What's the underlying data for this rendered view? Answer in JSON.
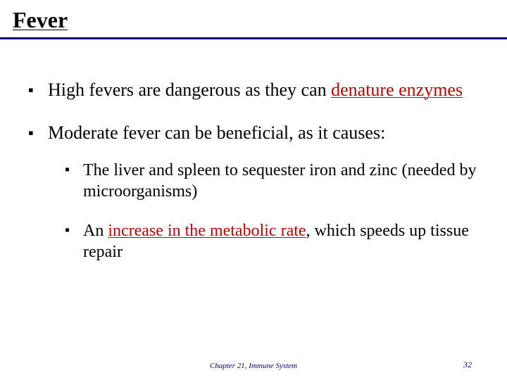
{
  "colors": {
    "text": "#000000",
    "highlight": "#c00000",
    "rule": "#000080",
    "footer": "#000080",
    "pagenum": "#000080",
    "background": "#ffffff"
  },
  "typography": {
    "font_family": "Times New Roman",
    "title_fontsize_pt": 24,
    "body_fontsize_pt": 20,
    "sub_fontsize_pt": 18,
    "footer_fontsize_pt": 8
  },
  "title": "Fever",
  "bullets": [
    {
      "pre": "High fevers are dangerous as they can ",
      "hl": "denature enzymes",
      "post": ""
    },
    {
      "pre": "Moderate fever can be beneficial, as it causes:",
      "hl": "",
      "post": "",
      "sub": [
        {
          "pre": "The liver and spleen to sequester iron and zinc (needed by microorganisms)",
          "hl": "",
          "post": ""
        },
        {
          "pre": "An ",
          "hl": "increase in the metabolic rate",
          "post": ", which speeds up tissue repair"
        }
      ]
    }
  ],
  "footer": {
    "center": "Chapter 21, Immune System",
    "page": "32"
  }
}
